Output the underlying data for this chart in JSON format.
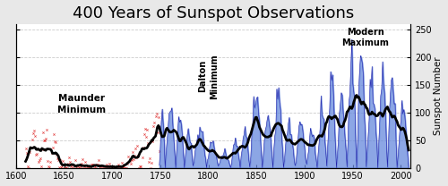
{
  "title": "400 Years of Sunspot Observations",
  "ylabel_right": "Sunspot Number",
  "xlim": [
    1600,
    2010
  ],
  "ylim": [
    0,
    260
  ],
  "yticks": [
    0,
    50,
    100,
    150,
    200,
    250
  ],
  "xticks": [
    1600,
    1650,
    1700,
    1750,
    1800,
    1850,
    1900,
    1950,
    2000
  ],
  "bg_color": "#e8e8e8",
  "plot_bg": "#ffffff",
  "maunder_label": "Maunder\nMinimum",
  "maunder_x": 1668,
  "maunder_y": 115,
  "dalton_label": "Dalton\nMinimum",
  "dalton_x": 1800,
  "dalton_y": 165,
  "dalton_rotation": 90,
  "modern_label": "Modern\nMaximum",
  "modern_x": 1963,
  "modern_y": 235,
  "red_color": "#dd2222",
  "blue_color": "#2222aa",
  "blue_fill": "#6688dd",
  "smooth_color": "#000000",
  "grid_color": "#cccccc",
  "title_fontsize": 13
}
